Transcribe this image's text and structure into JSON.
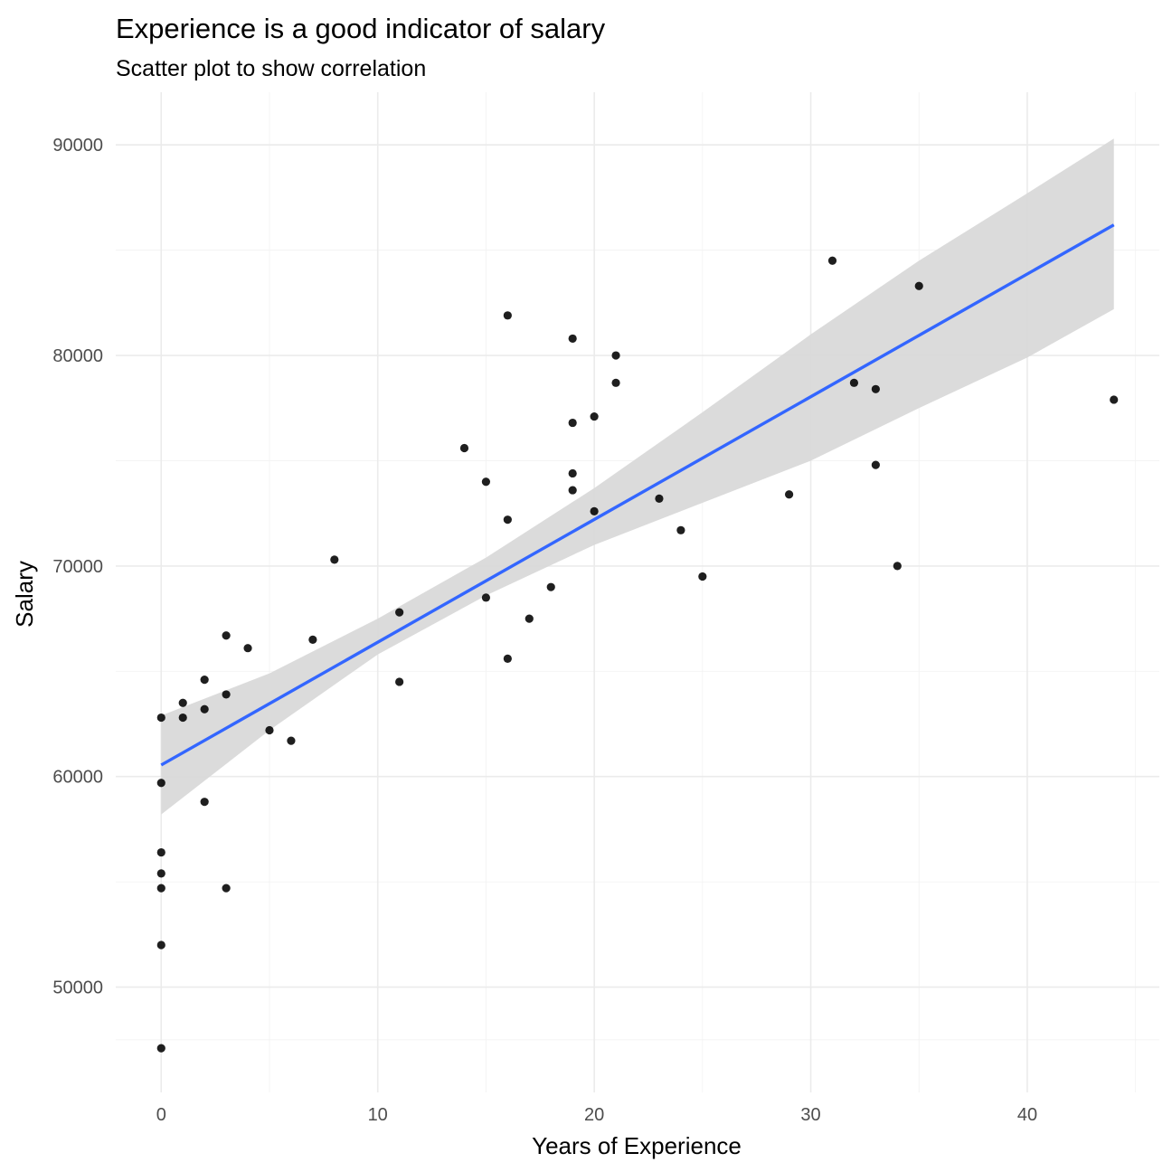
{
  "chart_data": {
    "type": "scatter",
    "title": "Experience is a good indicator of salary",
    "subtitle": "Scatter plot to show correlation",
    "xlabel": "Years of Experience",
    "ylabel": "Salary",
    "xlim": [
      -2.1,
      46.1
    ],
    "ylim": [
      45000,
      92500
    ],
    "xticks": [
      0,
      10,
      20,
      30,
      40
    ],
    "yticks": [
      50000,
      60000,
      70000,
      80000,
      90000
    ],
    "xtick_labels": [
      "0",
      "10",
      "20",
      "30",
      "40"
    ],
    "ytick_labels": [
      "50000",
      "60000",
      "70000",
      "80000",
      "90000"
    ],
    "grid": true,
    "points": [
      {
        "x": 0,
        "y": 62800
      },
      {
        "x": 0,
        "y": 59700
      },
      {
        "x": 0,
        "y": 56400
      },
      {
        "x": 0,
        "y": 55400
      },
      {
        "x": 0,
        "y": 54700
      },
      {
        "x": 0,
        "y": 52000
      },
      {
        "x": 0,
        "y": 47100
      },
      {
        "x": 1,
        "y": 63500
      },
      {
        "x": 1,
        "y": 62800
      },
      {
        "x": 2,
        "y": 64600
      },
      {
        "x": 2,
        "y": 63200
      },
      {
        "x": 2,
        "y": 58800
      },
      {
        "x": 3,
        "y": 66700
      },
      {
        "x": 3,
        "y": 63900
      },
      {
        "x": 3,
        "y": 54700
      },
      {
        "x": 4,
        "y": 66100
      },
      {
        "x": 5,
        "y": 62200
      },
      {
        "x": 6,
        "y": 61700
      },
      {
        "x": 7,
        "y": 66500
      },
      {
        "x": 8,
        "y": 70300
      },
      {
        "x": 11,
        "y": 67800
      },
      {
        "x": 11,
        "y": 64500
      },
      {
        "x": 14,
        "y": 75600
      },
      {
        "x": 15,
        "y": 74000
      },
      {
        "x": 15,
        "y": 68500
      },
      {
        "x": 16,
        "y": 81900
      },
      {
        "x": 16,
        "y": 72200
      },
      {
        "x": 16,
        "y": 65600
      },
      {
        "x": 17,
        "y": 67500
      },
      {
        "x": 18,
        "y": 69000
      },
      {
        "x": 19,
        "y": 80800
      },
      {
        "x": 19,
        "y": 76800
      },
      {
        "x": 19,
        "y": 74400
      },
      {
        "x": 19,
        "y": 73600
      },
      {
        "x": 20,
        "y": 77100
      },
      {
        "x": 20,
        "y": 72600
      },
      {
        "x": 21,
        "y": 80000
      },
      {
        "x": 21,
        "y": 78700
      },
      {
        "x": 23,
        "y": 73200
      },
      {
        "x": 24,
        "y": 71700
      },
      {
        "x": 25,
        "y": 69500
      },
      {
        "x": 29,
        "y": 73400
      },
      {
        "x": 31,
        "y": 84500
      },
      {
        "x": 32,
        "y": 78700
      },
      {
        "x": 33,
        "y": 78400
      },
      {
        "x": 33,
        "y": 74800
      },
      {
        "x": 34,
        "y": 70000
      },
      {
        "x": 35,
        "y": 83300
      },
      {
        "x": 44,
        "y": 77900
      }
    ],
    "regression": {
      "method": "lm",
      "line": [
        {
          "x": 0,
          "y": 60550
        },
        {
          "x": 44,
          "y": 86200
        }
      ],
      "band": [
        {
          "x": 0,
          "lower": 58200,
          "upper": 62900
        },
        {
          "x": 5,
          "lower": 62200,
          "upper": 64900
        },
        {
          "x": 10,
          "lower": 65800,
          "upper": 67500
        },
        {
          "x": 15,
          "lower": 68600,
          "upper": 70400
        },
        {
          "x": 20,
          "lower": 71000,
          "upper": 73700
        },
        {
          "x": 25,
          "lower": 73000,
          "upper": 77300
        },
        {
          "x": 30,
          "lower": 75000,
          "upper": 81000
        },
        {
          "x": 35,
          "lower": 77500,
          "upper": 84500
        },
        {
          "x": 40,
          "lower": 79900,
          "upper": 87700
        },
        {
          "x": 44,
          "lower": 82200,
          "upper": 90300
        }
      ],
      "line_color": "#3366ff",
      "band_color": "#d9d9d9"
    },
    "point_color": "#000000"
  }
}
